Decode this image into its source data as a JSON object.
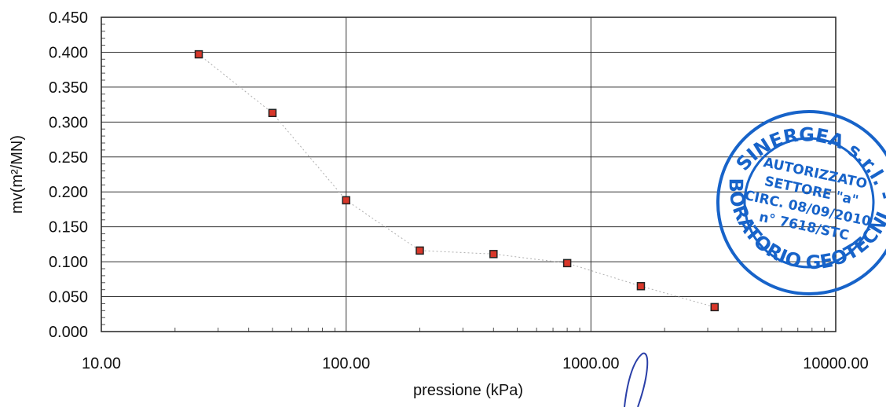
{
  "chart_data": {
    "type": "scatter",
    "xlabel": "pressione (kPa)",
    "ylabel": "mv(m²/MN)",
    "x_scale": "log",
    "xlim": [
      10,
      10000
    ],
    "ylim": [
      0,
      0.45
    ],
    "x_ticks": [
      10,
      100,
      1000,
      10000
    ],
    "x_tick_labels": [
      "10.00",
      "100.00",
      "1000.00",
      "10000.00"
    ],
    "y_ticks": [
      0,
      0.05,
      0.1,
      0.15,
      0.2,
      0.25,
      0.3,
      0.35,
      0.4,
      0.45
    ],
    "y_tick_labels": [
      "0.000",
      "0.050",
      "0.100",
      "0.150",
      "0.200",
      "0.250",
      "0.300",
      "0.350",
      "0.400",
      "0.450"
    ],
    "grid": true,
    "series": [
      {
        "x": [
          25,
          50,
          100,
          200,
          400,
          800,
          1600,
          3200
        ],
        "y": [
          0.397,
          0.313,
          0.188,
          0.116,
          0.111,
          0.098,
          0.065,
          0.035
        ],
        "marker": "square",
        "marker_color": "#d8372a",
        "line_style": "dotted"
      }
    ]
  },
  "stamp": {
    "top_text": "SINERGEA s.r.l. -",
    "ring_text": "LABORATORIO GEOTECNICO",
    "line1": "AUTORIZZATO",
    "line2": "SETTORE \"a\"",
    "line3": "CIRC. 08/09/2010",
    "line4": "n° 7618/STC",
    "color": "#1763c9"
  }
}
